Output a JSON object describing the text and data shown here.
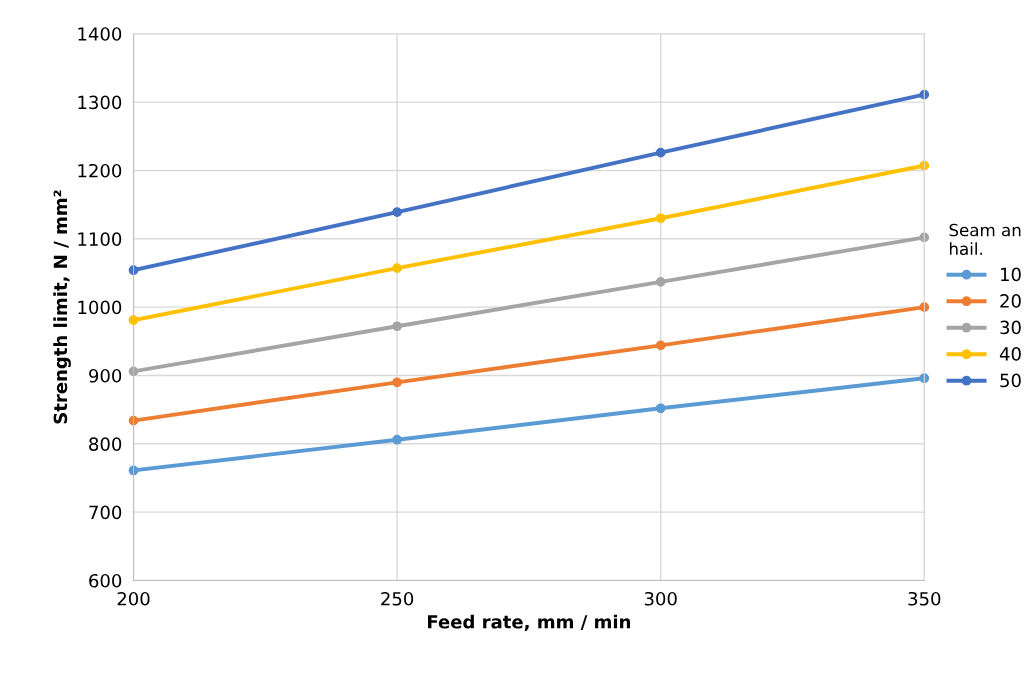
{
  "chart_data": {
    "type": "line",
    "xlabel": "Feed rate, mm / min",
    "ylabel": "Strength limit, N / mm²",
    "legend_title": "Seam an\nhail.",
    "x": [
      200,
      250,
      300,
      350
    ],
    "xlim": [
      200,
      350
    ],
    "xticks": [
      200,
      250,
      300,
      350
    ],
    "ylim": [
      600,
      1400
    ],
    "yticks": [
      600,
      700,
      800,
      900,
      1000,
      1100,
      1200,
      1300,
      1400
    ],
    "grid": true,
    "legend": "right",
    "marker": "circle",
    "line_style": "solid",
    "series": [
      {
        "name": "10",
        "color": "#5b9bd5",
        "values": [
          761,
          806,
          852,
          896
        ]
      },
      {
        "name": "20",
        "color": "#ed7d31",
        "values": [
          834,
          890,
          944,
          1000
        ]
      },
      {
        "name": "30",
        "color": "#a5a5a5",
        "values": [
          906,
          972,
          1037,
          1102
        ]
      },
      {
        "name": "40",
        "color": "#ffc000",
        "values": [
          981,
          1057,
          1130,
          1207
        ]
      },
      {
        "name": "50",
        "color": "#4472c4",
        "values": [
          1054,
          1139,
          1226,
          1311
        ]
      }
    ]
  }
}
